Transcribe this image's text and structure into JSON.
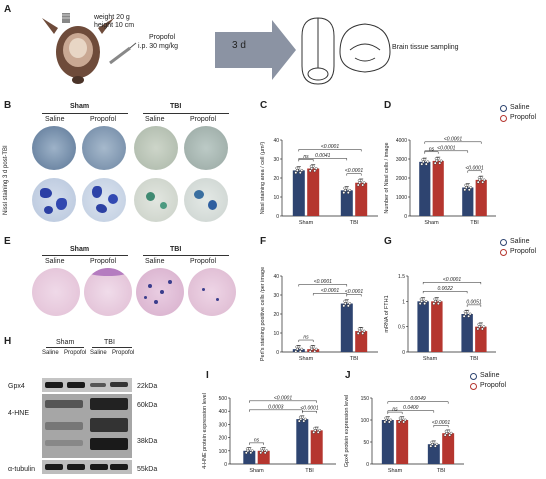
{
  "panelA": {
    "label": "A",
    "weight": "weight 20 g",
    "height": "height 10 cm",
    "drug": "Propofol",
    "dose": "i.p. 30 mg/kg",
    "duration": "3 d",
    "sampling": "Brain tissue sampling"
  },
  "panelB": {
    "label": "B",
    "ylabel": "Nissl staining 3 d post-TBI",
    "groups": [
      "Sham",
      "TBI"
    ],
    "sub": [
      "Saline",
      "Propofol",
      "Saline",
      "Propofol"
    ]
  },
  "panelE": {
    "label": "E",
    "groups": [
      "Sham",
      "TBI"
    ],
    "sub": [
      "Saline",
      "Propofol",
      "Saline",
      "Propofol"
    ]
  },
  "panelH": {
    "label": "H",
    "groups": [
      "Sham",
      "TBI"
    ],
    "sub": [
      "Saline",
      "Propofol",
      "Saline",
      "Propofol"
    ],
    "rows": [
      "Gpx4",
      "4-HNE",
      "α-tubulin"
    ],
    "markers": [
      "22kDa",
      "60kDa",
      "38kDa",
      "55kDa"
    ]
  },
  "legend": {
    "saline": "Saline",
    "propofol": "Propofol"
  },
  "colors": {
    "saline": "#2e4470",
    "propofol": "#b5362f"
  },
  "chart_data": [
    {
      "id": "C",
      "type": "bar",
      "categories": [
        "Sham",
        "TBI"
      ],
      "series": [
        {
          "name": "Saline",
          "values": [
            24,
            13.5
          ]
        },
        {
          "name": "Propofol",
          "values": [
            25,
            17.5
          ]
        }
      ],
      "ylabel": "Nissl staining area / cell (μm²)",
      "ylim": [
        0,
        40
      ],
      "yticks": [
        0,
        10,
        20,
        30,
        40
      ],
      "sig": [
        "ns",
        "<0.0001",
        "0.0041",
        "<0.0001"
      ]
    },
    {
      "id": "D",
      "type": "bar",
      "categories": [
        "Sham",
        "TBI"
      ],
      "series": [
        {
          "name": "Saline",
          "values": [
            2850,
            1500
          ]
        },
        {
          "name": "Propofol",
          "values": [
            2900,
            1900
          ]
        }
      ],
      "ylabel": "Number of Nissl cells / image",
      "ylim": [
        0,
        4000
      ],
      "yticks": [
        0,
        1000,
        2000,
        3000,
        4000
      ],
      "sig": [
        "ns",
        "<0.0001",
        "<0.0001",
        "<0.0001"
      ]
    },
    {
      "id": "F",
      "type": "bar",
      "categories": [
        "Sham",
        "TBI"
      ],
      "series": [
        {
          "name": "Saline",
          "values": [
            1.5,
            25.5
          ]
        },
        {
          "name": "Propofol",
          "values": [
            1.5,
            11
          ]
        }
      ],
      "ylabel": "Perl's staining positive cells /per image",
      "ylim": [
        0,
        40
      ],
      "yticks": [
        0,
        10,
        20,
        30,
        40
      ],
      "sig": [
        "ns",
        "<0.0001",
        "<0.0001",
        "<0.0001"
      ]
    },
    {
      "id": "G",
      "type": "bar",
      "categories": [
        "Sham",
        "TBI"
      ],
      "series": [
        {
          "name": "Saline",
          "values": [
            1.0,
            0.75
          ]
        },
        {
          "name": "Propofol",
          "values": [
            1.0,
            0.5
          ]
        }
      ],
      "ylabel": "mRNA of FTH1",
      "ylim": [
        0,
        1.5
      ],
      "yticks": [
        0.0,
        0.5,
        1.0,
        1.5
      ],
      "sig": [
        "0.0022",
        "0.0051",
        "<0.0001"
      ]
    },
    {
      "id": "I",
      "type": "bar",
      "categories": [
        "Sham",
        "TBI"
      ],
      "series": [
        {
          "name": "Saline",
          "values": [
            100,
            340
          ]
        },
        {
          "name": "Propofol",
          "values": [
            100,
            255
          ]
        }
      ],
      "ylabel": "4-HNE protein expression level",
      "ylim": [
        0,
        500
      ],
      "yticks": [
        0,
        100,
        200,
        300,
        400,
        500
      ],
      "sig": [
        "ns",
        "<0.0001",
        "0.0003",
        "<0.0001"
      ]
    },
    {
      "id": "J",
      "type": "bar",
      "categories": [
        "Sham",
        "TBI"
      ],
      "series": [
        {
          "name": "Saline",
          "values": [
            100,
            45
          ]
        },
        {
          "name": "Propofol",
          "values": [
            100,
            70
          ]
        }
      ],
      "ylabel": "Gpx4 protein expression level",
      "ylim": [
        0,
        150
      ],
      "yticks": [
        0,
        50,
        100,
        150
      ],
      "sig": [
        "ns",
        "<0.0001",
        "0.0400",
        "0.0049"
      ]
    }
  ]
}
